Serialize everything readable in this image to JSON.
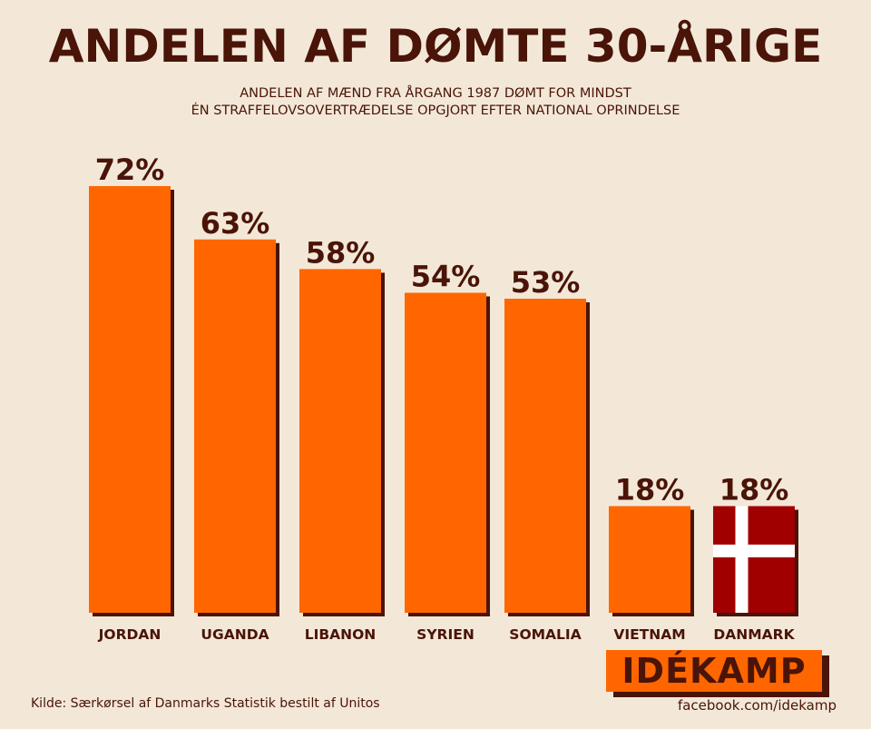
{
  "title": "ANDELEN AF DØMTE 30-ÅRIGE",
  "subtitle_line1": "ANDELEN AF MÆND FRA ÅRGANG 1987 DØMT FOR MINDST",
  "subtitle_line2": "ÉN STRAFFELOVSOVERTRÆDELSE OPGJORT EFTER NATIONAL OPRINDELSE",
  "chart_data": {
    "type": "bar",
    "title": "ANDELEN AF DØMTE 30-ÅRIGE",
    "categories": [
      "JORDAN",
      "UGANDA",
      "LIBANON",
      "SYRIEN",
      "SOMALIA",
      "VIETNAM",
      "DANMARK"
    ],
    "values": [
      72,
      63,
      58,
      54,
      53,
      18,
      18
    ],
    "value_labels": [
      "72%",
      "63%",
      "58%",
      "54%",
      "53%",
      "18%",
      "18%"
    ],
    "ylim": [
      0,
      72
    ],
    "grid": false,
    "bar_color": "#ff6600",
    "highlight_category": "DANMARK",
    "highlight_style": "danish-flag",
    "flag_red": "#a00000",
    "flag_white": "#ffffff"
  },
  "logo": {
    "text": "IDÉKAMP",
    "url": "facebook.com/idekamp"
  },
  "source": "Kilde: Særkørsel af Danmarks Statistik bestilt af Unitos",
  "colors": {
    "background": "#f3e8d8",
    "text": "#4a1408",
    "bar": "#ff6600",
    "shadow": "#4a1408"
  }
}
